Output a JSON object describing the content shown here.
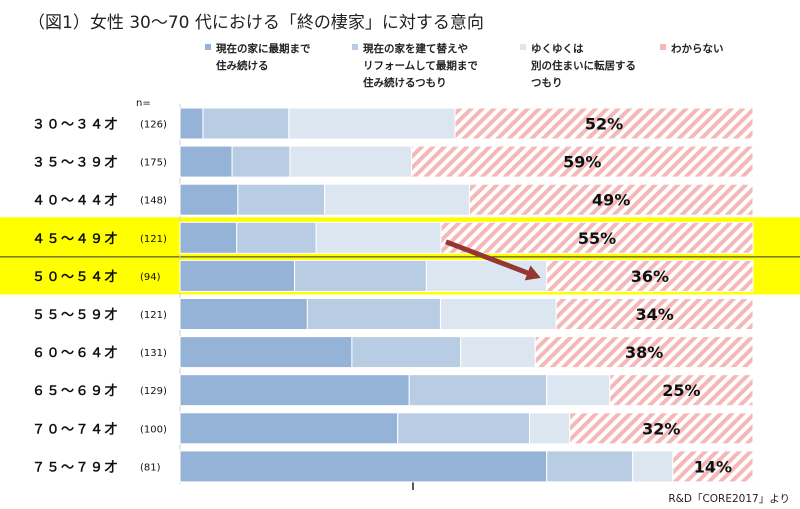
{
  "chart_data": {
    "type": "bar",
    "orientation": "horizontal",
    "stacked": true,
    "percent_stacked": true,
    "title": "（図1）女性 30～70 代における「終の棲家」に対する意向",
    "n_header": "n=",
    "categories": [
      "３０～３４才",
      "３５～３９才",
      "４０～４４才",
      "４５～４９才",
      "５０～５４才",
      "５５～５９才",
      "６０～６４才",
      "６５～６９才",
      "７０～７４才",
      "７５～７９才"
    ],
    "n_labels": [
      "(126)",
      "(175)",
      "(148)",
      "(121)",
      "(94)",
      "(121)",
      "(131)",
      "(129)",
      "(100)",
      "(81)"
    ],
    "highlighted": [
      "４５～４９才",
      "５０～５４才"
    ],
    "series": [
      {
        "name": "現在の家に最期まで\n住み続ける",
        "color": "#95b3d7",
        "values": [
          4,
          9,
          10,
          10,
          20,
          22,
          30,
          40,
          38,
          64
        ]
      },
      {
        "name": "現在の家を建て替えや\nリフォームして最期まで\n住み続けるつもり",
        "color": "#b8cce4",
        "values": [
          15,
          10,
          15,
          14,
          23,
          23,
          19,
          24,
          23,
          15
        ]
      },
      {
        "name": "ゆくゆくは\n別の住まいに転居する\nつもり",
        "color": "#dce6f1",
        "values": [
          29,
          21,
          25,
          22,
          21,
          20,
          13,
          11,
          7,
          7
        ]
      },
      {
        "name": "わからない",
        "color": "#f4b8b8",
        "pattern": "diagonal-hatch",
        "values": [
          52,
          59,
          49,
          55,
          36,
          34,
          38,
          25,
          32,
          14
        ]
      }
    ],
    "data_labels": [
      "52%",
      "59%",
      "49%",
      "55%",
      "36%",
      "34%",
      "38%",
      "25%",
      "32%",
      "14%"
    ],
    "xlim": [
      0,
      100
    ],
    "legend_position": "top",
    "annotation": "arrow from the 45～49才 bar to the 50～54才 bar",
    "source": "R&D「CORE2017」より"
  }
}
